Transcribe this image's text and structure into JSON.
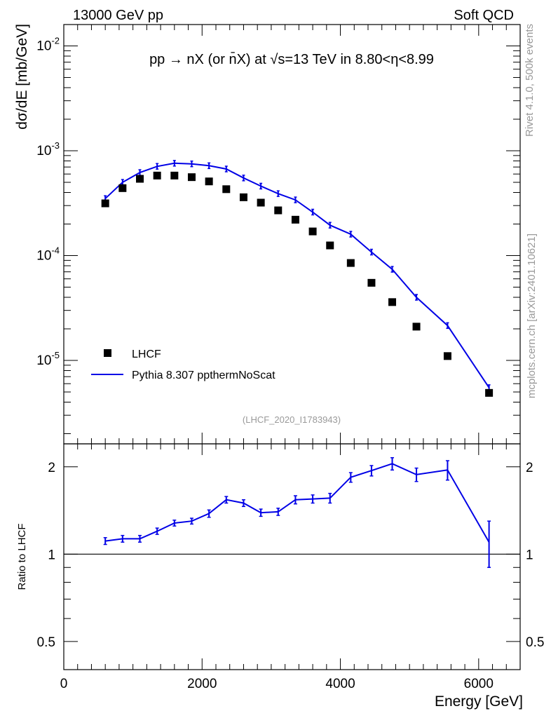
{
  "header": {
    "left": "13000 GeV pp",
    "right": "Soft QCD"
  },
  "side": {
    "rivet": "Rivet 4.1.0,  500k events",
    "mcplots": "mcplots.cern.ch [arXiv:2401.10621]"
  },
  "colors": {
    "data": "#000000",
    "mc": "#0000e6",
    "watermark": "#999999"
  },
  "chart_data": [
    {
      "type": "scatter",
      "panel": "main",
      "title": "pp → nX (or n̄X) at √s=13 TeV in 8.80<η<8.99",
      "ylabel": "dσ/dE [mb/GeV]",
      "xlabel": "",
      "yscale": "log",
      "xlim": [
        0,
        6600
      ],
      "ylim": [
        1.6e-06,
        0.016
      ],
      "y_ticks": [
        {
          "value": 0.01,
          "label": "10^-2"
        },
        {
          "value": 0.001,
          "label": "10^-3"
        },
        {
          "value": 0.0001,
          "label": "10^-4"
        },
        {
          "value": 1e-05,
          "label": "10^-5"
        }
      ],
      "analysis_tag": "(LHCF_2020_I1783943)",
      "legend_position": "lower-left",
      "series": [
        {
          "name": "LHCF",
          "style": "markers",
          "x": [
            600,
            850,
            1100,
            1350,
            1600,
            1850,
            2100,
            2350,
            2600,
            2850,
            3100,
            3350,
            3600,
            3850,
            4150,
            4450,
            4750,
            5100,
            5550,
            6150
          ],
          "y": [
            0.000315,
            0.00044,
            0.00054,
            0.00058,
            0.00058,
            0.00056,
            0.00051,
            0.00043,
            0.00036,
            0.00032,
            0.00027,
            0.00022,
            0.00017,
            0.000125,
            8.5e-05,
            5.5e-05,
            3.6e-05,
            2.1e-05,
            1.1e-05,
            4.9e-06
          ]
        },
        {
          "name": "Pythia 8.307 ppthermNoScat",
          "style": "line",
          "x": [
            600,
            850,
            1100,
            1350,
            1600,
            1850,
            2100,
            2350,
            2600,
            2850,
            3100,
            3350,
            3600,
            3850,
            4150,
            4450,
            4750,
            5100,
            5550,
            6150
          ],
          "y": [
            0.00035,
            0.0005,
            0.00062,
            0.00071,
            0.00076,
            0.00075,
            0.00072,
            0.00067,
            0.00055,
            0.00046,
            0.00039,
            0.00034,
            0.00026,
            0.000195,
            0.00016,
            0.000108,
            7.4e-05,
            4e-05,
            2.15e-05,
            5.5e-06
          ]
        }
      ]
    },
    {
      "type": "line",
      "panel": "ratio",
      "ylabel": "Ratio to LHCF",
      "xlabel": "Energy [GeV]",
      "yscale": "log",
      "xlim": [
        0,
        6600
      ],
      "ylim": [
        0.4,
        2.4
      ],
      "y_ticks": [
        {
          "value": 0.5,
          "label": "0.5"
        },
        {
          "value": 1,
          "label": "1"
        },
        {
          "value": 2,
          "label": "2"
        }
      ],
      "x_ticks": [
        {
          "value": 0,
          "label": "0"
        },
        {
          "value": 2000,
          "label": "2000"
        },
        {
          "value": 4000,
          "label": "4000"
        },
        {
          "value": 6000,
          "label": "6000"
        }
      ],
      "reference": 1,
      "series": [
        {
          "name": "Pythia 8.307 ppthermNoScat / LHCF",
          "x": [
            600,
            850,
            1100,
            1350,
            1600,
            1850,
            2100,
            2350,
            2600,
            2850,
            3100,
            3350,
            3600,
            3850,
            4150,
            4450,
            4750,
            5100,
            5550,
            6150
          ],
          "y": [
            1.11,
            1.13,
            1.13,
            1.2,
            1.28,
            1.3,
            1.38,
            1.54,
            1.5,
            1.39,
            1.4,
            1.54,
            1.55,
            1.56,
            1.84,
            1.94,
            2.05,
            1.88,
            1.95,
            1.1
          ],
          "err": [
            0.03,
            0.03,
            0.03,
            0.03,
            0.03,
            0.03,
            0.04,
            0.04,
            0.04,
            0.04,
            0.04,
            0.05,
            0.05,
            0.06,
            0.07,
            0.08,
            0.1,
            0.1,
            0.15,
            0.2
          ]
        }
      ]
    }
  ]
}
